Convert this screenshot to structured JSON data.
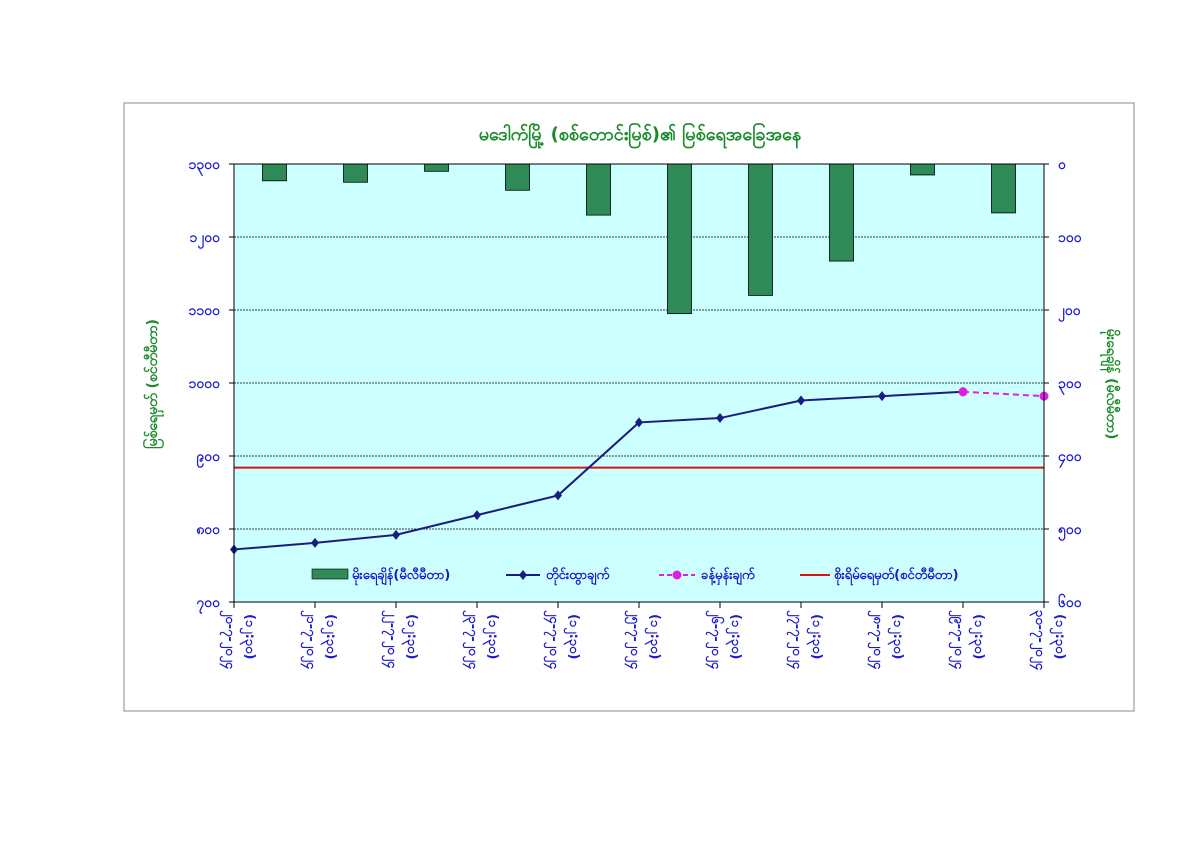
{
  "chart_data": {
    "type": "bar+line",
    "title": "မဒေါက်မြို့ (စစ်တောင်းမြစ်)၏ မြစ်ရေအခြေအနေ",
    "ylabel_left": "မြစ်ရေမှတ် (စင်တီမီတာ)",
    "ylabel_right": "မိုးရေချိန် (မီလီမီတာ)",
    "left_axis": {
      "min": 700,
      "max": 1300,
      "ticks": [
        "၇၀၀",
        "၈၀၀",
        "၉၀၀",
        "၁၀၀၀",
        "၁၁၀၀",
        "၁၂၀၀",
        "၁၃၀၀"
      ]
    },
    "right_axis": {
      "min": 0,
      "max": 600,
      "inverted": true,
      "ticks": [
        "၀",
        "၁၀၀",
        "၂၀၀",
        "၃၀၀",
        "၄၀၀",
        "၅၀၀",
        "၆၀၀"
      ]
    },
    "categories": [
      [
        "၂၀-၇-၂၀၂၄",
        "(၁၂:၃၀)"
      ],
      [
        "၂၁-၇-၂၀၂၄",
        "(၁၂:၃၀)"
      ],
      [
        "၂၂-၇-၂၀၂၄",
        "(၁၂:၃၀)"
      ],
      [
        "၂၃-၇-၂၀၂၄",
        "(၁၂:၃၀)"
      ],
      [
        "၂၄-၇-၂၀၂၄",
        "(၁၂:၃၀)"
      ],
      [
        "၂၅-၇-၂၀၂၄",
        "(၁၂:၃၀)"
      ],
      [
        "၂၆-၇-၂၀၂၄",
        "(၁၂:၃၀)"
      ],
      [
        "၂၇-၇-၂၀၂၄",
        "(၁၂:၃၀)"
      ],
      [
        "၂၈-၇-၂၀၂၄",
        "(၁၂:၃၀)"
      ],
      [
        "၂၉-၇-၂၀၂၄",
        "(၁၂:၃၀)"
      ],
      [
        "၃၀-၇-၂၀၂၄",
        "(၁၂:၃၀)"
      ]
    ],
    "series": [
      {
        "name": "မိုးရေချိန်(မီလီမီတာ)",
        "type": "bar",
        "axis": "right",
        "color": "#2e8b57",
        "values": [
          23,
          25,
          10,
          36,
          70,
          205,
          180,
          133,
          15,
          67,
          null
        ]
      },
      {
        "name": "တိုင်းထွာချက်",
        "type": "line",
        "axis": "left",
        "color": "#1c1c80",
        "values": [
          772,
          781,
          792,
          819,
          846,
          946,
          952,
          976,
          982,
          988,
          null
        ]
      },
      {
        "name": "ခန့်မှန်းချက်",
        "type": "line-dashed",
        "axis": "left",
        "color": "#e020e0",
        "values": [
          null,
          null,
          null,
          null,
          null,
          null,
          null,
          null,
          null,
          988,
          982
        ]
      },
      {
        "name": "စိုးရိမ်ရေမှတ်(စင်တီမီတာ)",
        "type": "hline",
        "axis": "left",
        "color": "#e01010",
        "value": 884
      }
    ],
    "grid": true,
    "legend_position": "bottom-inside",
    "plot_background": "#ccffff"
  }
}
